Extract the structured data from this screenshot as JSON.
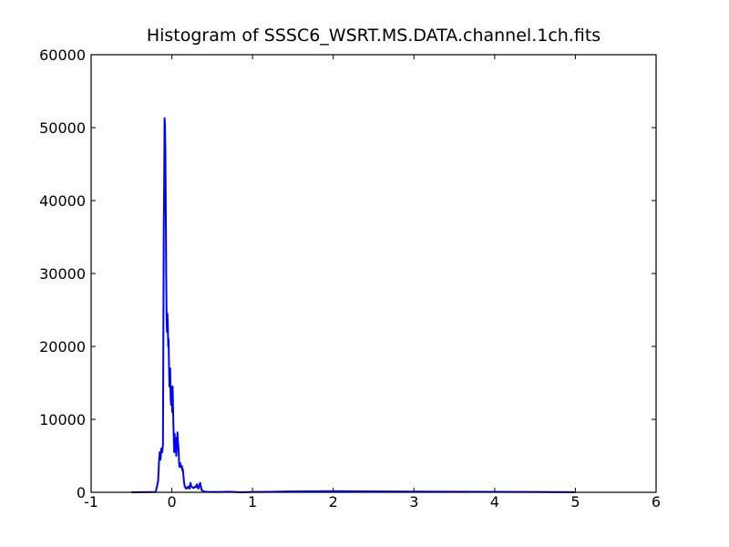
{
  "chart_data": {
    "type": "line",
    "title": "Histogram of SSSC6_WSRT.MS.DATA.channel.1ch.fits",
    "xlabel": "",
    "ylabel": "",
    "xlim": [
      -1,
      6
    ],
    "ylim": [
      0,
      60000
    ],
    "x_ticks": [
      -1,
      0,
      1,
      2,
      3,
      4,
      5,
      6
    ],
    "y_ticks": [
      0,
      10000,
      20000,
      30000,
      40000,
      50000,
      60000
    ],
    "grid": false,
    "legend": "none",
    "series": [
      {
        "color": "#0000ff",
        "x": [
          -0.5,
          -0.2,
          -0.17,
          -0.16,
          -0.15,
          -0.14,
          -0.13,
          -0.12,
          -0.11,
          -0.1,
          -0.095,
          -0.09,
          -0.085,
          -0.08,
          -0.075,
          -0.07,
          -0.065,
          -0.06,
          -0.055,
          -0.05,
          -0.045,
          -0.04,
          -0.035,
          -0.03,
          -0.025,
          -0.02,
          -0.015,
          -0.01,
          -0.005,
          0.0,
          0.005,
          0.01,
          0.015,
          0.02,
          0.025,
          0.03,
          0.035,
          0.04,
          0.045,
          0.05,
          0.055,
          0.06,
          0.065,
          0.07,
          0.075,
          0.08,
          0.085,
          0.09,
          0.095,
          0.1,
          0.105,
          0.11,
          0.115,
          0.12,
          0.125,
          0.13,
          0.135,
          0.14,
          0.15,
          0.16,
          0.17,
          0.18,
          0.19,
          0.2,
          0.21,
          0.22,
          0.23,
          0.24,
          0.25,
          0.27,
          0.29,
          0.3,
          0.31,
          0.33,
          0.35,
          0.37,
          0.38,
          0.39,
          0.4,
          0.41,
          0.42,
          0.45,
          0.5,
          0.6,
          0.7,
          0.8,
          0.9,
          1.0,
          1.2,
          1.5,
          2.0,
          2.5,
          3.0,
          3.5,
          4.0,
          4.5,
          5.0
        ],
        "y": [
          0,
          50,
          1500,
          4000,
          5500,
          4500,
          6000,
          5500,
          6500,
          36000,
          42000,
          51300,
          50500,
          47000,
          39000,
          30000,
          24000,
          22000,
          24500,
          23000,
          20000,
          21000,
          17500,
          14500,
          15500,
          17000,
          13000,
          12000,
          14500,
          12500,
          11000,
          14500,
          11500,
          9000,
          7000,
          5500,
          8000,
          6000,
          7500,
          6500,
          5000,
          6000,
          7000,
          8200,
          7000,
          6500,
          5500,
          4000,
          3500,
          3500,
          4000,
          3500,
          3400,
          3500,
          3600,
          3000,
          3200,
          2800,
          1500,
          800,
          600,
          500,
          700,
          600,
          800,
          500,
          1300,
          900,
          700,
          600,
          800,
          700,
          1100,
          500,
          1300,
          300,
          200,
          150,
          100,
          100,
          80,
          60,
          50,
          40,
          80,
          30,
          20,
          40,
          60,
          120,
          150,
          120,
          100,
          80,
          60,
          40,
          20
        ]
      }
    ]
  }
}
